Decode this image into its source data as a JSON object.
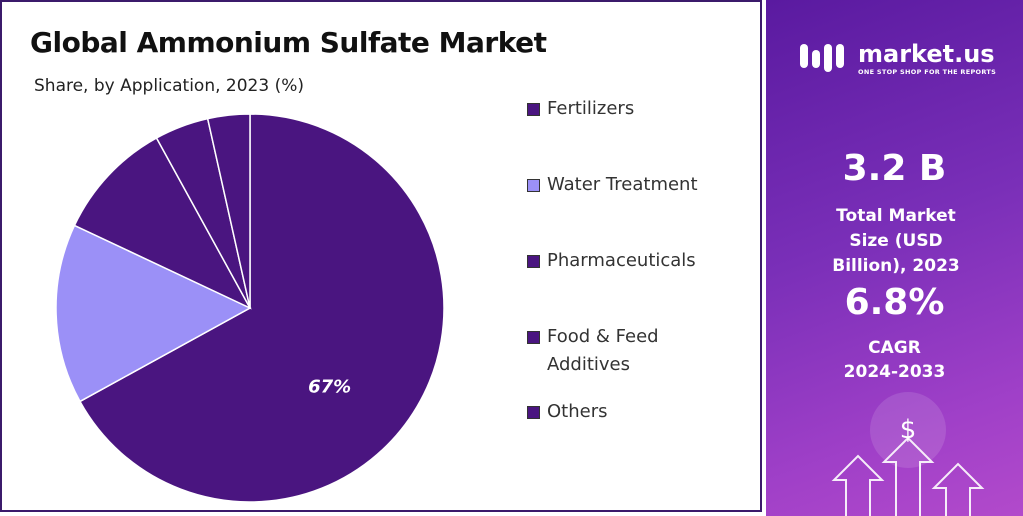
{
  "chart_data": {
    "type": "pie",
    "title": "Global Ammonium Sulfate Market",
    "subtitle": "Share, by Application, 2023 (%)",
    "categories": [
      "Fertilizers",
      "Water Treatment",
      "Pharmaceuticals",
      "Food & Feed Additives",
      "Others"
    ],
    "values": [
      67,
      15,
      10,
      4.5,
      3.5
    ],
    "value_labels": [
      "67%",
      null,
      null,
      null,
      null
    ],
    "colors": [
      "#4a1580",
      "#9b90f7",
      "#4a1580",
      "#4a1580",
      "#4a1580"
    ]
  },
  "panel": {
    "brand": "market.us",
    "tagline": "ONE STOP SHOP FOR THE REPORTS",
    "market_size": "3.2 B",
    "market_size_label": "Total Market Size (USD Billion), 2023",
    "cagr": "6.8%",
    "cagr_label": "CAGR",
    "cagr_period": "2024-2033"
  }
}
